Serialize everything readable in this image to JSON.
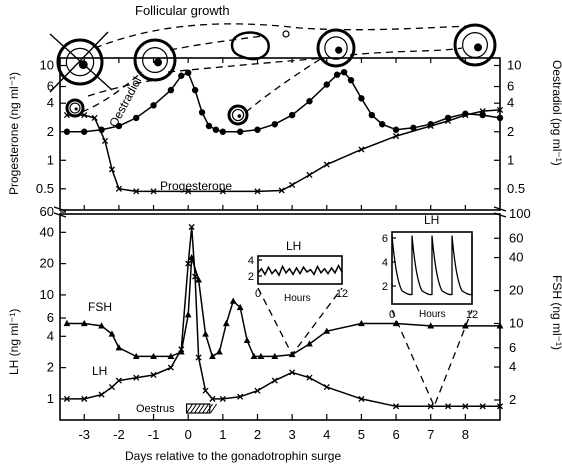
{
  "chart_data": [
    {
      "type": "line",
      "panel": "top",
      "title": "Follicular growth",
      "x_ticks": [
        -3,
        -2,
        -1,
        0,
        1,
        2,
        3,
        4,
        5,
        6,
        7,
        8
      ],
      "x_range": [
        -3.7,
        9.0
      ],
      "y_scale": "log",
      "y_left_label": "Progesterone (ng ml⁻¹)",
      "y_left_ticks": [
        0.5,
        1,
        2,
        4,
        6,
        10
      ],
      "y_right_label": "Oestradiol (pg ml⁻¹)",
      "y_right_ticks": [
        0.5,
        1,
        2,
        4,
        6,
        10
      ],
      "series": [
        {
          "name": "Oestradiol",
          "marker": "dot",
          "x": [
            -3.5,
            -3.0,
            -2.5,
            -2.0,
            -1.5,
            -1.0,
            -0.5,
            -0.2,
            0.0,
            0.2,
            0.4,
            0.6,
            0.8,
            1.0,
            1.5,
            2.0,
            2.5,
            3.0,
            3.5,
            4.0,
            4.3,
            4.5,
            4.7,
            5.0,
            5.3,
            5.6,
            6.0,
            6.5,
            7.0,
            7.5,
            8.0,
            8.5,
            9.0
          ],
          "y": [
            2.0,
            2.0,
            2.1,
            2.3,
            2.8,
            3.8,
            5.5,
            7.8,
            8.4,
            5.5,
            3.2,
            2.3,
            2.1,
            2.0,
            2.0,
            2.1,
            2.4,
            3.0,
            4.2,
            6.3,
            8.0,
            8.5,
            7.0,
            4.5,
            3.0,
            2.4,
            2.1,
            2.2,
            2.4,
            2.8,
            3.1,
            3.0,
            2.8
          ]
        },
        {
          "name": "Progesterone",
          "marker": "x",
          "x": [
            -3.5,
            -3.0,
            -2.7,
            -2.4,
            -2.2,
            -2.0,
            -1.5,
            -1.0,
            0.0,
            1.0,
            2.0,
            2.7,
            3.0,
            3.5,
            4.0,
            5.0,
            6.0,
            7.0,
            7.5,
            8.0,
            8.5,
            9.0
          ],
          "y": [
            3.0,
            3.0,
            2.8,
            1.6,
            0.8,
            0.5,
            0.47,
            0.47,
            0.47,
            0.47,
            0.47,
            0.48,
            0.55,
            0.7,
            0.9,
            1.3,
            1.8,
            2.3,
            2.6,
            3.0,
            3.3,
            3.4
          ]
        }
      ]
    },
    {
      "type": "line",
      "panel": "bottom",
      "xlabel": "Days relative to the gonadotrophin surge",
      "x_ticks": [
        -3,
        -2,
        -1,
        0,
        1,
        2,
        3,
        4,
        5,
        6,
        7,
        8
      ],
      "x_range": [
        -3.7,
        9.0
      ],
      "y_scale": "log",
      "y_left_label": "LH (ng ml⁻¹)",
      "y_left_ticks": [
        1,
        2,
        4,
        6,
        10,
        20,
        40,
        60
      ],
      "y_right_label": "FSH (ng ml⁻¹)",
      "y_right_ticks": [
        2,
        4,
        6,
        10,
        20,
        40,
        60,
        100
      ],
      "annotation": "Oestrus",
      "oestrus_days": [
        0.3,
        1.2
      ],
      "series": [
        {
          "name": "FSH",
          "axis": "right",
          "marker": "triangle",
          "x": [
            -3.5,
            -3.0,
            -2.5,
            -2.2,
            -2.0,
            -1.5,
            -1.0,
            -0.5,
            -0.2,
            0.0,
            0.1,
            0.3,
            0.5,
            0.7,
            0.9,
            1.1,
            1.3,
            1.5,
            1.7,
            1.9,
            2.1,
            2.5,
            3.0,
            3.5,
            4.0,
            5.0,
            6.0,
            7.0,
            8.0,
            9.0
          ],
          "y": [
            10,
            10,
            9.5,
            8,
            6,
            5,
            5,
            5,
            5.5,
            12,
            40,
            25,
            8,
            5,
            5.5,
            10,
            16,
            14,
            7,
            5,
            5,
            5,
            5.2,
            6.5,
            8.5,
            10,
            10,
            9.5,
            9.5,
            9.5
          ]
        },
        {
          "name": "LH",
          "axis": "left",
          "marker": "x",
          "x": [
            -3.5,
            -3.0,
            -2.5,
            -2.2,
            -2.0,
            -1.5,
            -1.0,
            -0.5,
            -0.2,
            0.0,
            0.1,
            0.2,
            0.3,
            0.5,
            0.7,
            1.0,
            1.5,
            2.0,
            2.5,
            3.0,
            3.5,
            4.0,
            5.0,
            6.0,
            7.0,
            7.5,
            8.0,
            8.5,
            9.0
          ],
          "y": [
            1.0,
            1.0,
            1.1,
            1.3,
            1.5,
            1.6,
            1.7,
            2.0,
            3.0,
            20,
            45,
            15,
            2.5,
            1.2,
            1.0,
            1.0,
            1.05,
            1.2,
            1.5,
            1.8,
            1.6,
            1.3,
            1.0,
            0.85,
            0.85,
            0.85,
            0.85,
            0.85,
            0.85
          ]
        }
      ],
      "insets": [
        {
          "title": "LH",
          "xlabel": "Hours",
          "x_ticks": [
            0,
            12
          ],
          "y_ticks": [
            2,
            4
          ],
          "x": [
            0,
            0.5,
            1,
            1.5,
            2,
            2.5,
            3,
            3.5,
            4,
            4.5,
            5,
            5.5,
            6,
            6.5,
            7,
            7.5,
            8,
            8.5,
            9,
            9.5,
            10,
            10.5,
            11,
            11.5,
            12
          ],
          "y": [
            2.4,
            2.9,
            2.2,
            3.1,
            2.3,
            2.8,
            2.1,
            3.2,
            2.4,
            2.9,
            2.2,
            3.0,
            2.3,
            3.1,
            2.5,
            2.8,
            2.2,
            3.2,
            2.4,
            2.9,
            2.3,
            3.0,
            2.4,
            3.3,
            2.5
          ]
        },
        {
          "title": "LH",
          "xlabel": "Hours",
          "x_ticks": [
            0,
            12
          ],
          "y_ticks": [
            2,
            4,
            6
          ],
          "pulse_hours": [
            0,
            3,
            6,
            9,
            12
          ]
        }
      ]
    }
  ]
}
